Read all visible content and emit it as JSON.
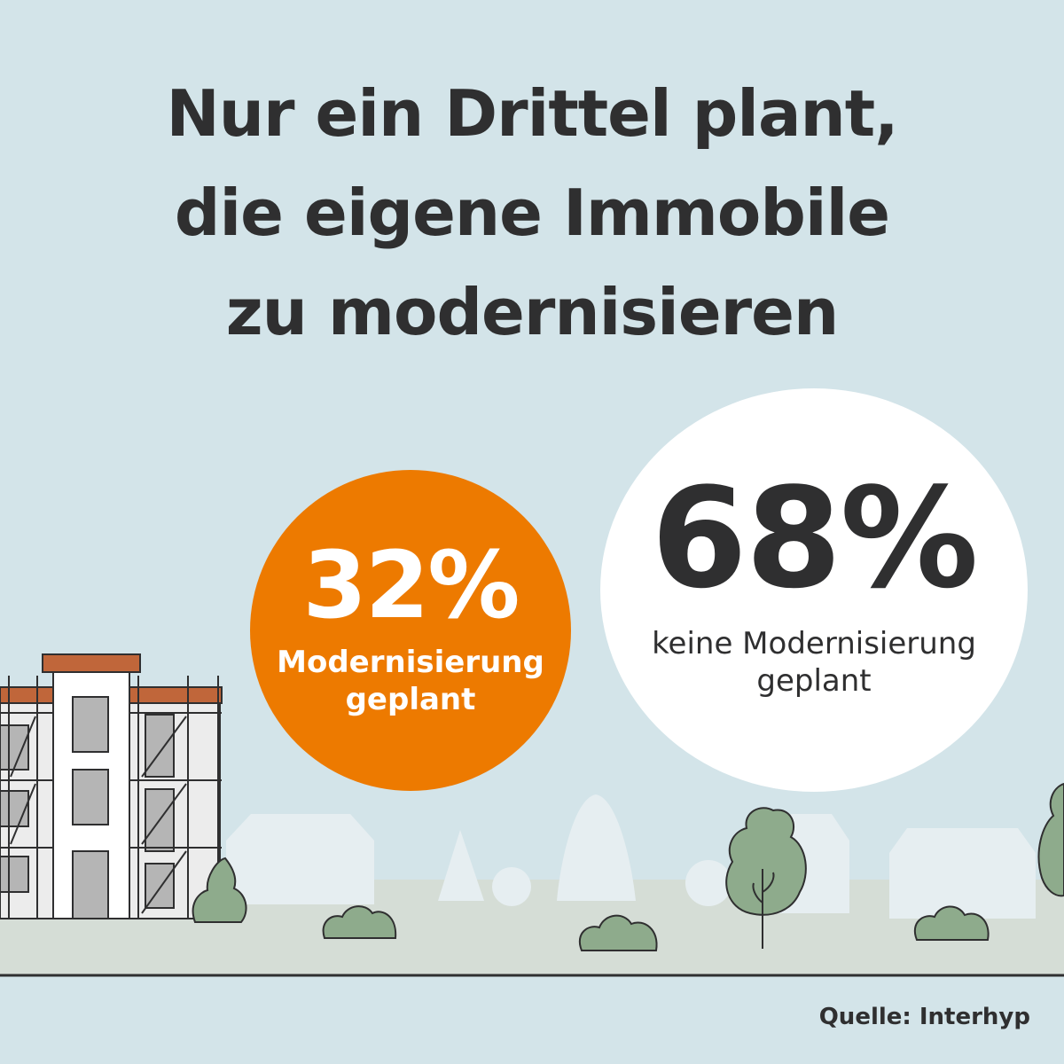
{
  "title": {
    "lines": [
      "Nur ein Drittel plant,",
      "die eigene Immobile",
      "zu modernisieren"
    ]
  },
  "chart_data": {
    "type": "pie",
    "categories": [
      "Modernisierung geplant",
      "keine Modernisierung geplant"
    ],
    "values": [
      32,
      68
    ],
    "unit": "%",
    "colors": [
      "#ed7a00",
      "#ffffff"
    ],
    "display": "bubbles"
  },
  "bubbles": {
    "planned": {
      "value_label": "32%",
      "label_lines": [
        "Modernisierung",
        "geplant"
      ]
    },
    "not_planned": {
      "value_label": "68%",
      "label_lines": [
        "keine Modernisierung",
        "geplant"
      ]
    }
  },
  "source": "Quelle: Interhyp",
  "colors": {
    "background": "#d3e4e9",
    "accent": "#ed7a00",
    "text": "#2f2f30",
    "tree_green": "#8eab8c",
    "ground": "#d5ddd6",
    "roof": "#c0663a"
  },
  "icons": [
    "apartment-building-icon",
    "scaffolding-icon",
    "tree-icon",
    "bush-icon",
    "house-silhouette-icon"
  ]
}
